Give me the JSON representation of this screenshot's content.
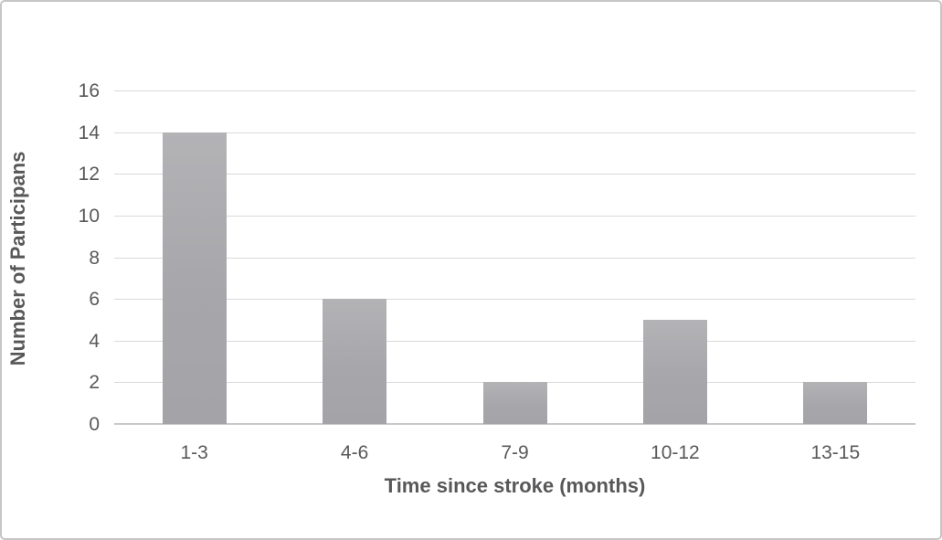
{
  "chart_data": {
    "type": "bar",
    "title": "",
    "categories": [
      "1-3",
      "4-6",
      "7-9",
      "10-12",
      "13-15"
    ],
    "values": [
      14,
      6,
      2,
      5,
      2
    ],
    "xlabel": "Time since stroke (months)",
    "ylabel": "Number of Participans",
    "ylim": [
      0,
      16
    ],
    "yticks": [
      0,
      2,
      4,
      6,
      8,
      10,
      12,
      14,
      16
    ],
    "grid": true,
    "legend": false,
    "colors": {
      "bar_top": "#b3b3b6",
      "bar_bottom": "#a4a4a8",
      "gridline": "#d9d9d9",
      "axis_line": "#c9c9c9",
      "tick_text": "#595959",
      "title_text": "#58585a",
      "frame_border": "#c6c6c6",
      "background": "#ffffff"
    }
  }
}
